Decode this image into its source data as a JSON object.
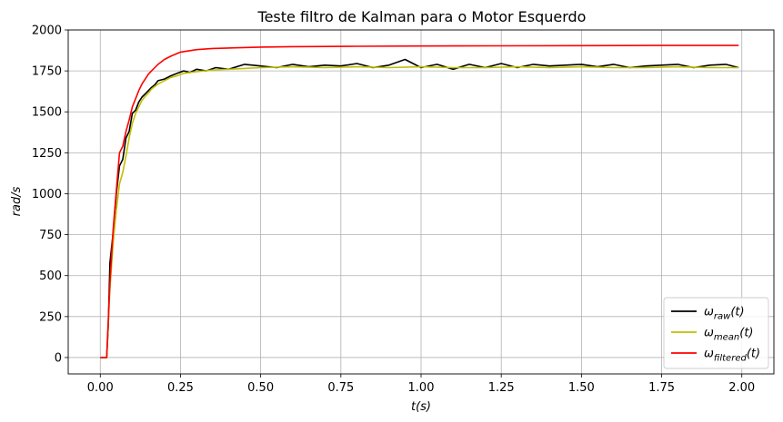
{
  "chart_data": {
    "type": "line",
    "title": "Teste filtro de Kalman para o Motor Esquerdo",
    "xlabel": "t(s)",
    "ylabel": "rad/s",
    "xlim": [
      -0.1,
      2.1
    ],
    "ylim": [
      -100,
      2000
    ],
    "xticks": [
      "0.00",
      "0.25",
      "0.50",
      "0.75",
      "1.00",
      "1.25",
      "1.50",
      "1.75",
      "2.00"
    ],
    "yticks": [
      "0",
      "250",
      "500",
      "750",
      "1000",
      "1250",
      "1500",
      "1750",
      "2000"
    ],
    "grid": true,
    "legend_position": "lower-right",
    "series": [
      {
        "name": "ω_raw(t)",
        "legend": {
          "base": "ω",
          "sub": "raw",
          "suffix": "(t)"
        },
        "color": "#000000",
        "x": [
          0,
          0.02,
          0.025,
          0.03,
          0.04,
          0.05,
          0.06,
          0.07,
          0.08,
          0.09,
          0.1,
          0.11,
          0.12,
          0.13,
          0.14,
          0.15,
          0.16,
          0.17,
          0.18,
          0.2,
          0.22,
          0.24,
          0.26,
          0.28,
          0.3,
          0.33,
          0.36,
          0.4,
          0.45,
          0.5,
          0.55,
          0.6,
          0.65,
          0.7,
          0.75,
          0.8,
          0.85,
          0.9,
          0.95,
          1.0,
          1.05,
          1.1,
          1.15,
          1.2,
          1.25,
          1.3,
          1.35,
          1.4,
          1.45,
          1.5,
          1.55,
          1.6,
          1.65,
          1.7,
          1.75,
          1.8,
          1.85,
          1.9,
          1.95,
          1.99
        ],
        "y": [
          0,
          0,
          200,
          580,
          760,
          1000,
          1170,
          1210,
          1340,
          1380,
          1490,
          1510,
          1560,
          1590,
          1610,
          1630,
          1650,
          1665,
          1690,
          1700,
          1720,
          1735,
          1750,
          1740,
          1760,
          1750,
          1770,
          1760,
          1790,
          1780,
          1770,
          1790,
          1775,
          1785,
          1780,
          1795,
          1770,
          1785,
          1820,
          1770,
          1790,
          1760,
          1790,
          1770,
          1795,
          1770,
          1790,
          1780,
          1785,
          1790,
          1775,
          1790,
          1770,
          1780,
          1785,
          1790,
          1770,
          1785,
          1790,
          1770
        ]
      },
      {
        "name": "ω_mean(t)",
        "legend": {
          "base": "ω",
          "sub": "mean",
          "suffix": "(t)"
        },
        "color": "#bfbf00",
        "x": [
          0,
          0.02,
          0.03,
          0.04,
          0.05,
          0.06,
          0.07,
          0.08,
          0.09,
          0.1,
          0.11,
          0.12,
          0.13,
          0.14,
          0.15,
          0.16,
          0.17,
          0.18,
          0.2,
          0.22,
          0.24,
          0.26,
          0.28,
          0.3,
          0.35,
          0.4,
          0.45,
          0.5,
          0.6,
          0.7,
          0.8,
          0.9,
          1.0,
          1.1,
          1.2,
          1.3,
          1.4,
          1.5,
          1.6,
          1.7,
          1.8,
          1.9,
          1.99
        ],
        "y": [
          0,
          0,
          420,
          700,
          900,
          1060,
          1130,
          1230,
          1340,
          1430,
          1490,
          1530,
          1570,
          1595,
          1615,
          1640,
          1655,
          1670,
          1690,
          1710,
          1720,
          1735,
          1740,
          1745,
          1755,
          1760,
          1765,
          1770,
          1775,
          1770,
          1775,
          1770,
          1775,
          1770,
          1770,
          1775,
          1770,
          1775,
          1770,
          1770,
          1775,
          1770,
          1770
        ]
      },
      {
        "name": "ω_filtered(t)",
        "legend": {
          "base": "ω",
          "sub": "filtered",
          "suffix": "(t)"
        },
        "color": "#ff0000",
        "x": [
          0,
          0.02,
          0.03,
          0.04,
          0.05,
          0.06,
          0.07,
          0.08,
          0.09,
          0.1,
          0.11,
          0.12,
          0.13,
          0.14,
          0.15,
          0.16,
          0.17,
          0.18,
          0.2,
          0.22,
          0.25,
          0.3,
          0.35,
          0.4,
          0.5,
          0.6,
          0.8,
          1.0,
          1.25,
          1.5,
          1.75,
          1.99
        ],
        "y": [
          0,
          0,
          460,
          780,
          1020,
          1250,
          1290,
          1380,
          1450,
          1530,
          1580,
          1630,
          1670,
          1700,
          1730,
          1750,
          1770,
          1790,
          1820,
          1840,
          1865,
          1880,
          1887,
          1890,
          1895,
          1898,
          1900,
          1902,
          1903,
          1904,
          1905,
          1905
        ]
      }
    ]
  }
}
